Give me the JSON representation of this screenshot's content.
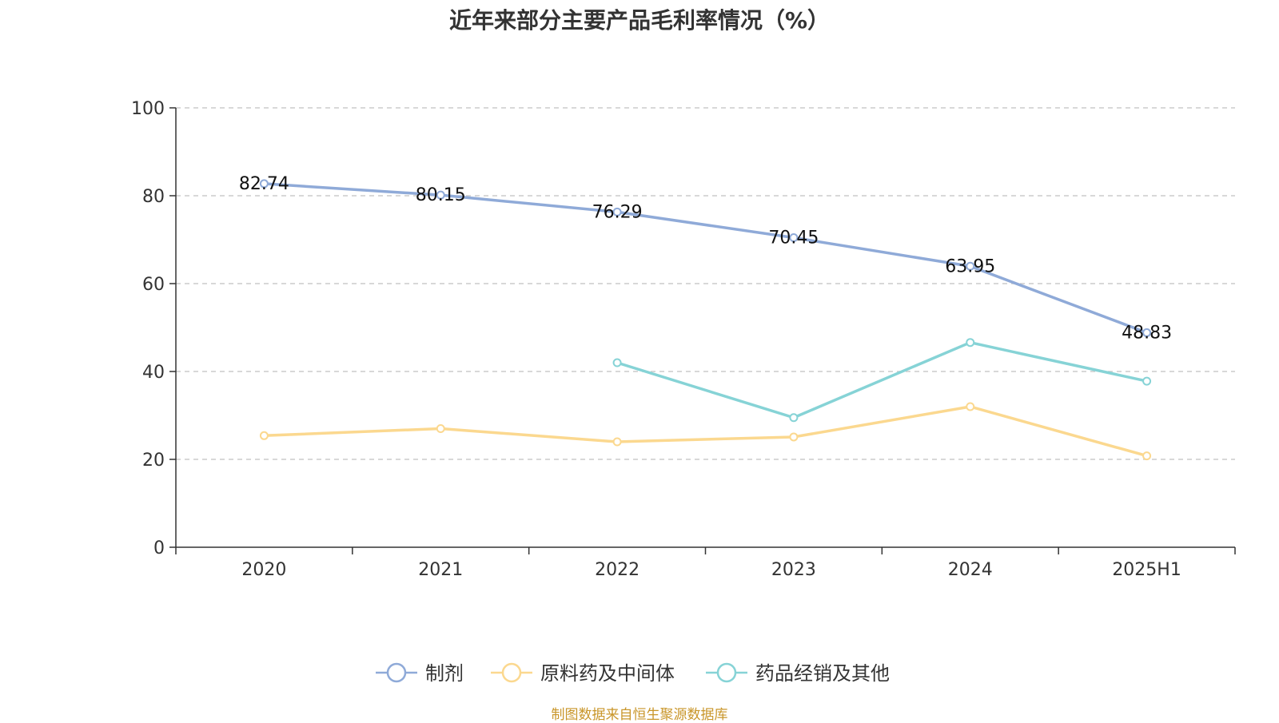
{
  "chart_data": {
    "type": "line",
    "title": "近年来部分主要产品毛利率情况（%）",
    "source": "制图数据来自恒生聚源数据库",
    "categories": [
      "2020",
      "2021",
      "2022",
      "2023",
      "2024",
      "2025H1"
    ],
    "ylim": [
      0,
      100
    ],
    "yticks": [
      0,
      20,
      40,
      60,
      80,
      100
    ],
    "grid": true,
    "legend_position": "bottom-center",
    "series": [
      {
        "name": "制剂",
        "color": "#8faad8",
        "values": [
          82.74,
          80.15,
          76.29,
          70.45,
          63.95,
          48.83
        ],
        "labels": [
          "82.74",
          "80.15",
          "76.29",
          "70.45",
          "63.95",
          "48.83"
        ]
      },
      {
        "name": "原料药及中间体",
        "color": "#fbd88f",
        "values": [
          25.4,
          27.0,
          24.0,
          25.1,
          32.0,
          20.8
        ]
      },
      {
        "name": "药品经销及其他",
        "color": "#86d3d6",
        "values": [
          null,
          null,
          42.0,
          29.5,
          46.6,
          37.8
        ]
      }
    ]
  }
}
